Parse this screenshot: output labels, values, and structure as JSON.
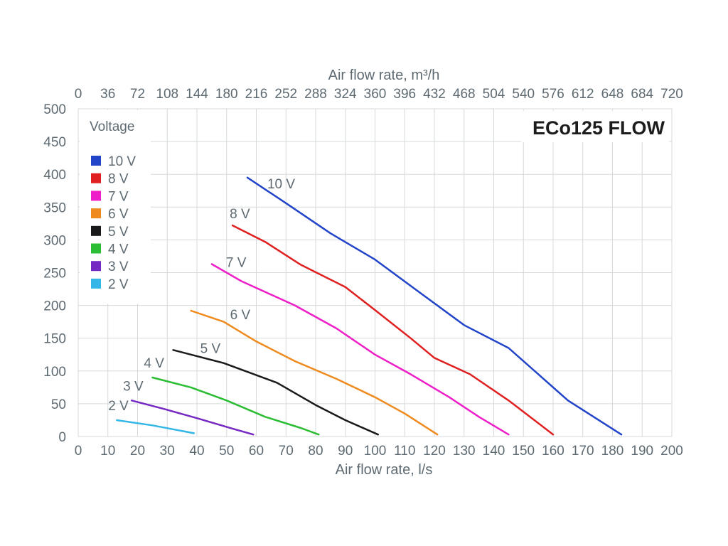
{
  "chart_data": {
    "type": "line",
    "title": "ECo125 FLOW",
    "xlabel": "Air flow rate, l/s",
    "x2label": "Air flow rate, m³/h",
    "xlim": [
      0,
      200
    ],
    "ylim": [
      0,
      500
    ],
    "grid": true,
    "legend_title": "Voltage",
    "legend_position": "top-left",
    "x_ticks": [
      "0",
      "10",
      "20",
      "30",
      "40",
      "50",
      "60",
      "70",
      "80",
      "90",
      "100",
      "110",
      "120",
      "130",
      "140",
      "150",
      "160",
      "170",
      "180",
      "190",
      "200"
    ],
    "x2_ticks": [
      "0",
      "36",
      "72",
      "108",
      "144",
      "180",
      "216",
      "252",
      "288",
      "324",
      "360",
      "396",
      "432",
      "468",
      "504",
      "540",
      "576",
      "612",
      "648",
      "684",
      "720"
    ],
    "y_ticks": [
      "0",
      "50",
      "100",
      "150",
      "200",
      "250",
      "300",
      "350",
      "400",
      "450",
      "500"
    ],
    "series": [
      {
        "name": "10 V",
        "label": "10 V",
        "color": "#2244c8",
        "x": [
          57,
          70,
          85,
          100,
          115,
          130,
          145,
          153,
          165,
          183
        ],
        "y": [
          395,
          356,
          310,
          270,
          220,
          170,
          135,
          103,
          55,
          3
        ]
      },
      {
        "name": "8 V",
        "label": "8 V",
        "color": "#e02020",
        "x": [
          52,
          63,
          75,
          90,
          100,
          112,
          120,
          132,
          145,
          160
        ],
        "y": [
          322,
          297,
          262,
          228,
          193,
          150,
          120,
          95,
          55,
          3
        ]
      },
      {
        "name": "7 V",
        "label": "7 V",
        "color": "#ee1ec8",
        "x": [
          45,
          55,
          73,
          87,
          100,
          112,
          125,
          135,
          145
        ],
        "y": [
          263,
          237,
          200,
          165,
          125,
          95,
          60,
          30,
          3
        ]
      },
      {
        "name": "6 V",
        "label": "6 V",
        "color": "#ef8a1e",
        "x": [
          38,
          49,
          60,
          73,
          87,
          100,
          110,
          121
        ],
        "y": [
          192,
          175,
          145,
          115,
          88,
          60,
          35,
          3
        ]
      },
      {
        "name": "5 V",
        "label": "5 V",
        "color": "#1a1a1a",
        "x": [
          32,
          49,
          67,
          80,
          90,
          101
        ],
        "y": [
          132,
          112,
          82,
          48,
          25,
          3
        ]
      },
      {
        "name": "4 V",
        "label": "4 V",
        "color": "#2bbd34",
        "x": [
          25,
          38,
          50,
          63,
          75,
          81
        ],
        "y": [
          90,
          75,
          55,
          30,
          13,
          3
        ]
      },
      {
        "name": "3 V",
        "label": "3 V",
        "color": "#7628c2",
        "x": [
          18,
          29,
          40,
          52,
          59
        ],
        "y": [
          55,
          42,
          28,
          12,
          3
        ]
      },
      {
        "name": "2 V",
        "label": "2 V",
        "color": "#34b7e6",
        "x": [
          13,
          25,
          39
        ],
        "y": [
          25,
          17,
          5
        ]
      }
    ]
  }
}
